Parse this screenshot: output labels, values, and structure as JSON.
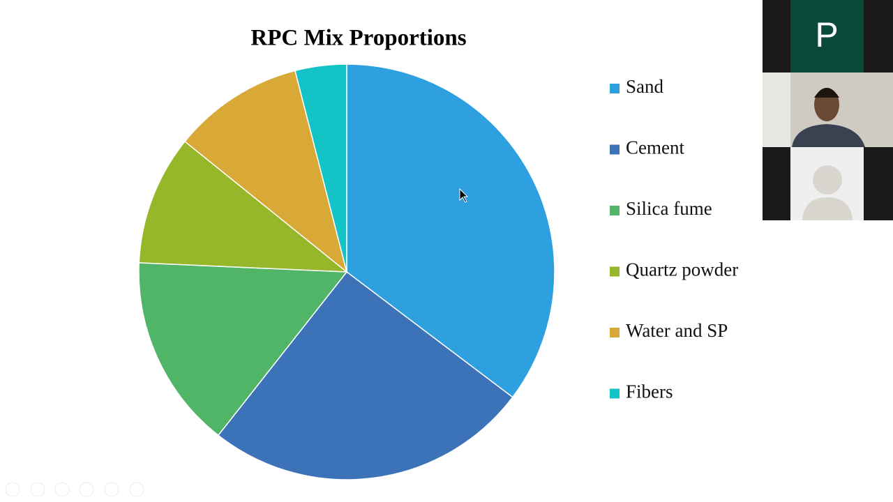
{
  "chart_data": {
    "type": "pie",
    "title": "RPC Mix Proportions",
    "categories": [
      "Sand",
      "Cement",
      "Silica fume",
      "Quartz powder",
      "Water and SP",
      "Fibers"
    ],
    "values": [
      35.3,
      25.3,
      15.1,
      10.1,
      10.2,
      4.0
    ],
    "colors": [
      "#2e9fdf",
      "#3c72b8",
      "#50b567",
      "#97b72a",
      "#d8a936",
      "#14c3c6"
    ],
    "legend": "right"
  },
  "video_panel": {
    "presenter_initial": "P"
  }
}
